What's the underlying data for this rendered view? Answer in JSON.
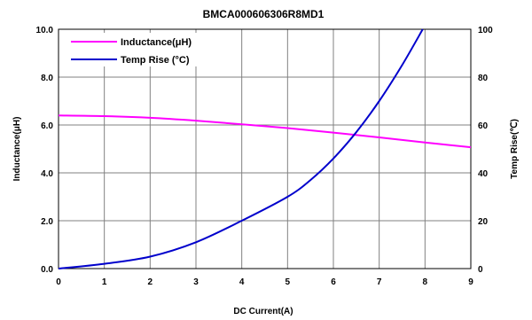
{
  "chart_data": {
    "type": "line",
    "title": "BMCA000606306R8MD1",
    "xlabel": "DC Current(A)",
    "ylabel_left": "Inductance(μH)",
    "ylabel_right": "Temp Rise(℃)",
    "xlim": [
      0,
      9
    ],
    "ylim_left": [
      0,
      10
    ],
    "ylim_right": [
      0,
      100
    ],
    "x_ticks": [
      "0",
      "1",
      "2",
      "3",
      "4",
      "5",
      "6",
      "7",
      "8",
      "9"
    ],
    "y_left_ticks": [
      "0.0",
      "2.0",
      "4.0",
      "6.0",
      "8.0",
      "10.0"
    ],
    "y_right_ticks": [
      "0",
      "20",
      "40",
      "60",
      "80",
      "100"
    ],
    "grid": true,
    "legend_position": "top-left",
    "series": [
      {
        "name": "Inductance(μH)",
        "axis": "left",
        "color": "#ff00ff",
        "x": [
          0,
          1,
          2,
          3,
          4,
          5,
          6,
          7,
          8,
          9
        ],
        "y": [
          6.4,
          6.37,
          6.3,
          6.18,
          6.03,
          5.87,
          5.68,
          5.48,
          5.27,
          5.07
        ]
      },
      {
        "name": "Temp Rise (°C)",
        "axis": "right",
        "color": "#0000cc",
        "x": [
          0,
          1,
          2,
          3,
          4,
          5,
          5.5,
          6,
          6.5,
          7,
          7.5,
          7.95
        ],
        "y": [
          0,
          2,
          5,
          11,
          20,
          30,
          37,
          46,
          57,
          70,
          85,
          100
        ]
      }
    ]
  }
}
